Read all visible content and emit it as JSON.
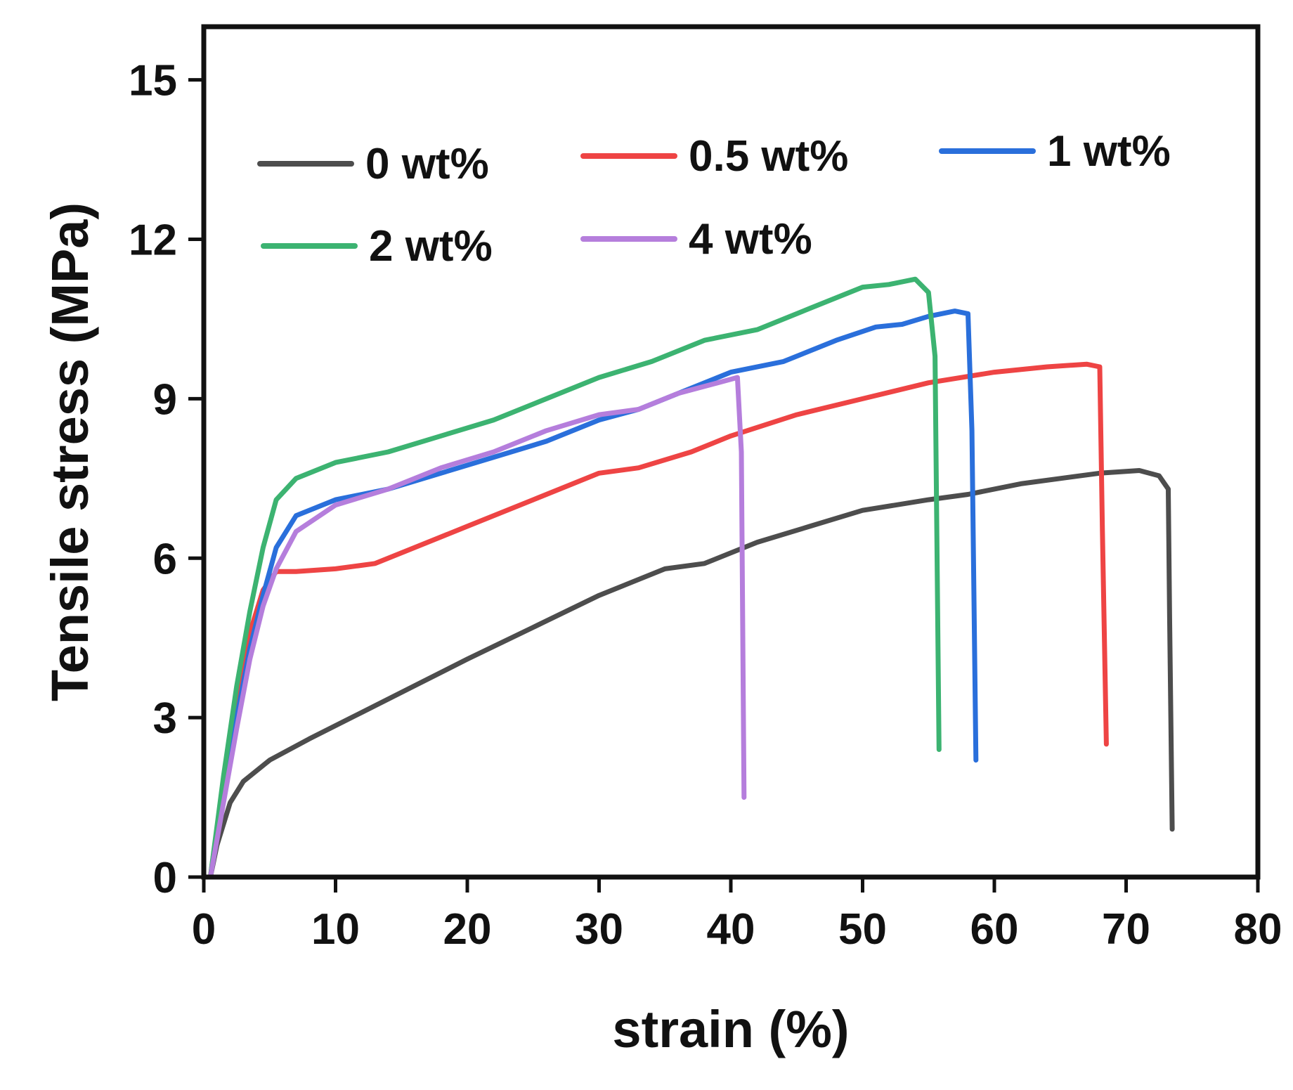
{
  "chart_data": {
    "type": "line",
    "title": "",
    "xlabel": "strain (%)",
    "ylabel": "Tensile stress (MPa)",
    "xlim": [
      0,
      80
    ],
    "ylim": [
      0,
      16
    ],
    "xticks": [
      0,
      10,
      20,
      30,
      40,
      50,
      60,
      70,
      80
    ],
    "yticks": [
      0,
      3,
      6,
      9,
      12,
      15
    ],
    "grid": false,
    "legend_position": "top",
    "series": [
      {
        "name": "0 wt%",
        "color": "#4d4d4d",
        "points": [
          [
            0.5,
            0
          ],
          [
            1,
            0.6
          ],
          [
            2,
            1.4
          ],
          [
            3,
            1.8
          ],
          [
            5,
            2.2
          ],
          [
            8,
            2.6
          ],
          [
            12,
            3.1
          ],
          [
            16,
            3.6
          ],
          [
            20,
            4.1
          ],
          [
            25,
            4.7
          ],
          [
            30,
            5.3
          ],
          [
            35,
            5.8
          ],
          [
            38,
            5.9
          ],
          [
            42,
            6.3
          ],
          [
            46,
            6.6
          ],
          [
            50,
            6.9
          ],
          [
            55,
            7.1
          ],
          [
            58,
            7.2
          ],
          [
            62,
            7.4
          ],
          [
            65,
            7.5
          ],
          [
            68,
            7.6
          ],
          [
            71,
            7.65
          ],
          [
            72.5,
            7.55
          ],
          [
            73.2,
            7.3
          ],
          [
            73.3,
            4.9
          ],
          [
            73.5,
            0.9
          ]
        ]
      },
      {
        "name": "0.5 wt%",
        "color": "#ee4444",
        "points": [
          [
            0.5,
            0
          ],
          [
            1.5,
            1.8
          ],
          [
            2.5,
            3.2
          ],
          [
            3.5,
            4.6
          ],
          [
            4.5,
            5.4
          ],
          [
            5.5,
            5.75
          ],
          [
            7,
            5.75
          ],
          [
            10,
            5.8
          ],
          [
            13,
            5.9
          ],
          [
            16,
            6.2
          ],
          [
            20,
            6.6
          ],
          [
            25,
            7.1
          ],
          [
            30,
            7.6
          ],
          [
            33,
            7.7
          ],
          [
            37,
            8.0
          ],
          [
            40,
            8.3
          ],
          [
            45,
            8.7
          ],
          [
            50,
            9.0
          ],
          [
            55,
            9.3
          ],
          [
            60,
            9.5
          ],
          [
            64,
            9.6
          ],
          [
            67,
            9.65
          ],
          [
            68,
            9.6
          ],
          [
            68.2,
            6.5
          ],
          [
            68.5,
            2.5
          ]
        ]
      },
      {
        "name": "1 wt%",
        "color": "#2a6fdb",
        "points": [
          [
            0.5,
            0
          ],
          [
            1.5,
            1.6
          ],
          [
            2.5,
            3.0
          ],
          [
            3.5,
            4.3
          ],
          [
            4.5,
            5.3
          ],
          [
            5.5,
            6.2
          ],
          [
            7,
            6.8
          ],
          [
            10,
            7.1
          ],
          [
            14,
            7.3
          ],
          [
            18,
            7.6
          ],
          [
            22,
            7.9
          ],
          [
            26,
            8.2
          ],
          [
            30,
            8.6
          ],
          [
            33,
            8.8
          ],
          [
            37,
            9.2
          ],
          [
            40,
            9.5
          ],
          [
            44,
            9.7
          ],
          [
            48,
            10.1
          ],
          [
            51,
            10.35
          ],
          [
            53,
            10.4
          ],
          [
            55,
            10.55
          ],
          [
            57,
            10.65
          ],
          [
            58,
            10.6
          ],
          [
            58.3,
            8.4
          ],
          [
            58.6,
            2.2
          ]
        ]
      },
      {
        "name": "2 wt%",
        "color": "#3cb371",
        "points": [
          [
            0.5,
            0
          ],
          [
            1.5,
            1.9
          ],
          [
            2.5,
            3.6
          ],
          [
            3.5,
            5.0
          ],
          [
            4.5,
            6.2
          ],
          [
            5.5,
            7.1
          ],
          [
            7,
            7.5
          ],
          [
            10,
            7.8
          ],
          [
            14,
            8.0
          ],
          [
            18,
            8.3
          ],
          [
            22,
            8.6
          ],
          [
            26,
            9.0
          ],
          [
            30,
            9.4
          ],
          [
            34,
            9.7
          ],
          [
            38,
            10.1
          ],
          [
            42,
            10.3
          ],
          [
            46,
            10.7
          ],
          [
            50,
            11.1
          ],
          [
            52,
            11.15
          ],
          [
            54,
            11.25
          ],
          [
            55,
            11.0
          ],
          [
            55.5,
            9.8
          ],
          [
            55.8,
            2.4
          ]
        ]
      },
      {
        "name": "4 wt%",
        "color": "#b57edc",
        "points": [
          [
            0.5,
            0
          ],
          [
            1.5,
            1.4
          ],
          [
            2.5,
            2.8
          ],
          [
            3.5,
            4.1
          ],
          [
            4.5,
            5.1
          ],
          [
            5.5,
            5.8
          ],
          [
            7,
            6.5
          ],
          [
            10,
            7.0
          ],
          [
            14,
            7.3
          ],
          [
            18,
            7.7
          ],
          [
            22,
            8.0
          ],
          [
            26,
            8.4
          ],
          [
            30,
            8.7
          ],
          [
            33,
            8.8
          ],
          [
            36,
            9.1
          ],
          [
            39,
            9.3
          ],
          [
            40.5,
            9.4
          ],
          [
            40.8,
            8.0
          ],
          [
            41,
            1.5
          ]
        ]
      }
    ]
  }
}
